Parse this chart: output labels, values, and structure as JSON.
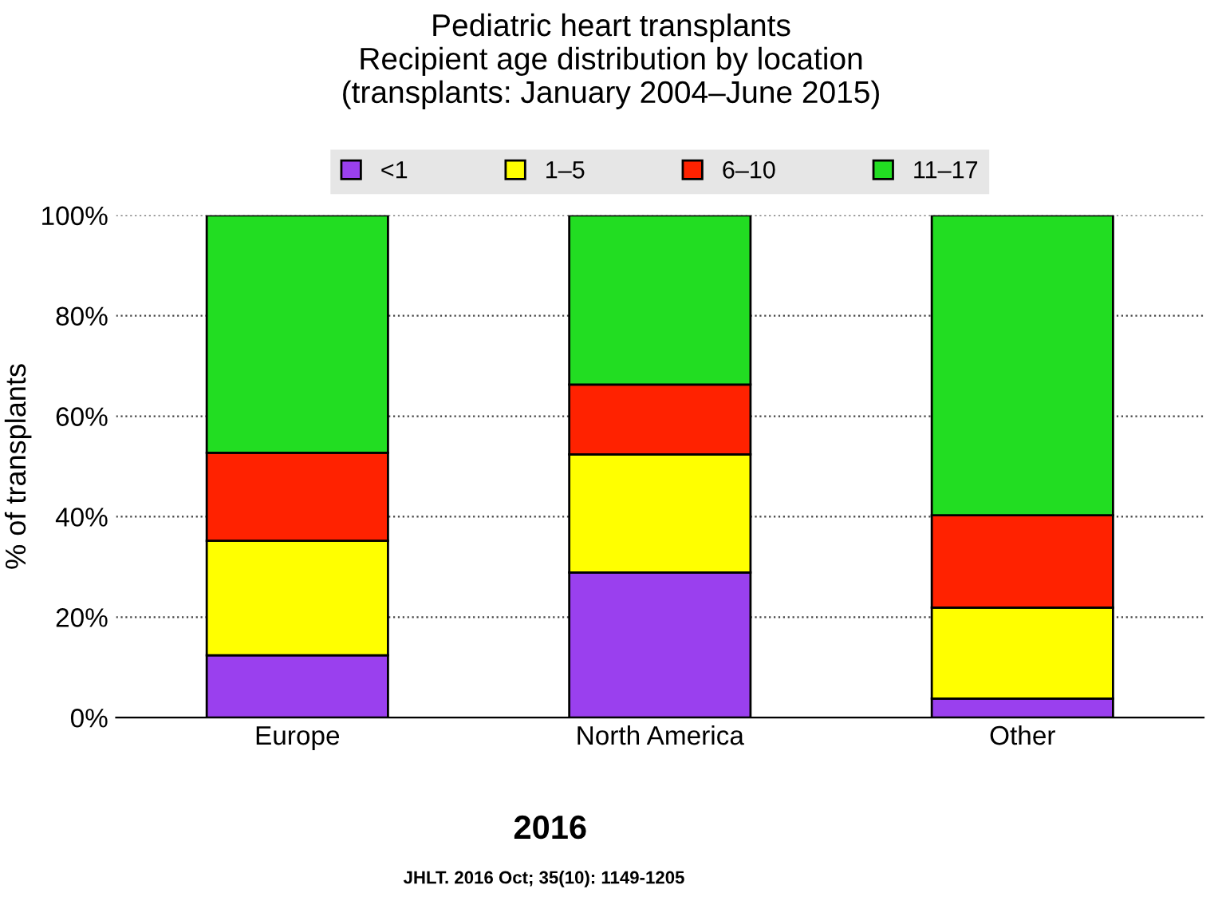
{
  "chart_data": {
    "type": "bar",
    "stacked": true,
    "title": "Pediatric heart transplants\nRecipient age distribution by location\n(transplants: January 2004–June 2015)",
    "ylabel": "% of transplants",
    "categories": [
      "Europe",
      "North America",
      "Other"
    ],
    "series": [
      {
        "name": "<1",
        "color": "#9a40ee",
        "values": [
          12.4,
          28.9,
          3.8
        ]
      },
      {
        "name": "1–5",
        "color": "#ffff00",
        "values": [
          22.8,
          23.5,
          18.1
        ]
      },
      {
        "name": "6–10",
        "color": "#ff2200",
        "values": [
          17.5,
          13.9,
          18.4
        ]
      },
      {
        "name": "11–17",
        "color": "#22dd22",
        "values": [
          47.3,
          33.7,
          59.7
        ]
      }
    ],
    "ylim": [
      0,
      100
    ],
    "yticks": [
      {
        "value": 0,
        "label": "0%"
      },
      {
        "value": 20,
        "label": "20%"
      },
      {
        "value": 40,
        "label": "40%"
      },
      {
        "value": 60,
        "label": "60%"
      },
      {
        "value": 80,
        "label": "80%"
      },
      {
        "value": 100,
        "label": "100%"
      }
    ],
    "grid": "y",
    "legend": "top",
    "annotations": [
      "2016",
      "JHLT. 2016 Oct; 35(10): 1149-1205"
    ]
  }
}
